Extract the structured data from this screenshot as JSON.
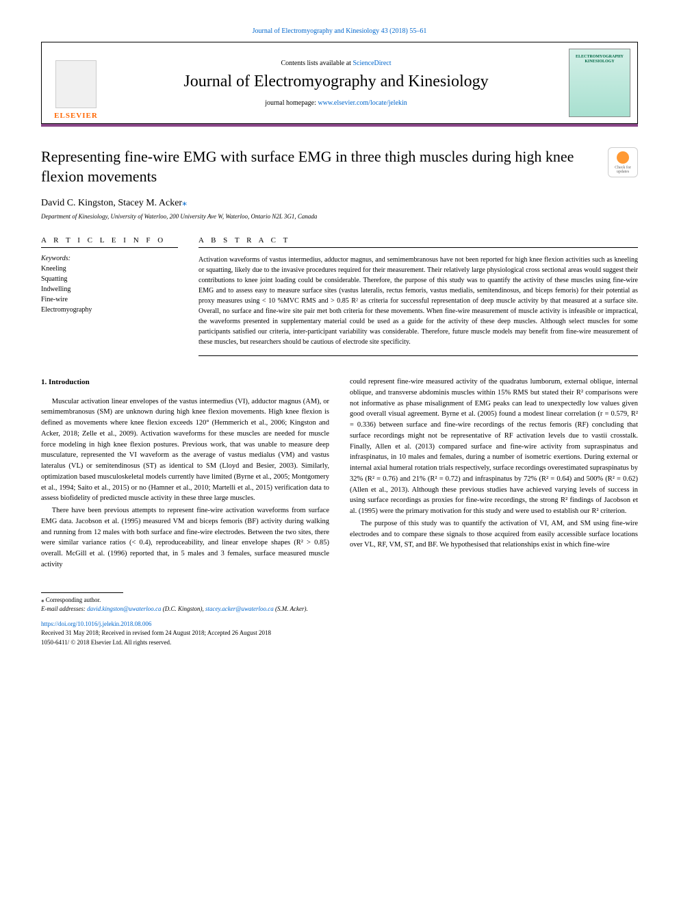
{
  "header": {
    "citation": "Journal of Electromyography and Kinesiology 43 (2018) 55–61",
    "contents_text": "Contents lists available at ",
    "contents_link": "ScienceDirect",
    "journal_name": "Journal of Electromyography and Kinesiology",
    "homepage_text": "journal homepage: ",
    "homepage_link": "www.elsevier.com/locate/jelekin",
    "publisher": "ELSEVIER",
    "cover_line1": "ELECTROMYOGRAPHY",
    "cover_line2": "KINESIOLOGY"
  },
  "article": {
    "title": "Representing fine-wire EMG with surface EMG in three thigh muscles during high knee flexion movements",
    "updates_label": "Check for updates",
    "authors_html": "David C. Kingston, Stacey M. Acker",
    "corr_marker": "⁎",
    "affiliation": "Department of Kinesiology, University of Waterloo, 200 University Ave W, Waterloo, Ontario N2L 3G1, Canada"
  },
  "info": {
    "heading": "A R T I C L E  I N F O",
    "keywords_label": "Keywords:",
    "keywords": [
      "Kneeling",
      "Squatting",
      "Indwelling",
      "Fine-wire",
      "Electromyography"
    ]
  },
  "abstract": {
    "heading": "A B S T R A C T",
    "text": "Activation waveforms of vastus intermedius, adductor magnus, and semimembranosus have not been reported for high knee flexion activities such as kneeling or squatting, likely due to the invasive procedures required for their measurement. Their relatively large physiological cross sectional areas would suggest their contributions to knee joint loading could be considerable. Therefore, the purpose of this study was to quantify the activity of these muscles using fine-wire EMG and to assess easy to measure surface sites (vastus lateralis, rectus femoris, vastus medialis, semitendinosus, and biceps femoris) for their potential as proxy measures using < 10 %MVC RMS and > 0.85 R² as criteria for successful representation of deep muscle activity by that measured at a surface site. Overall, no surface and fine-wire site pair met both criteria for these movements. When fine-wire measurement of muscle activity is infeasible or impractical, the waveforms presented in supplementary material could be used as a guide for the activity of these deep muscles. Although select muscles for some participants satisfied our criteria, inter-participant variability was considerable. Therefore, future muscle models may benefit from fine-wire measurement of these muscles, but researchers should be cautious of electrode site specificity."
  },
  "body": {
    "intro_heading": "1. Introduction",
    "col1_p1": "Muscular activation linear envelopes of the vastus intermedius (VI), adductor magnus (AM), or semimembranosus (SM) are unknown during high knee flexion movements. High knee flexion is defined as movements where knee flexion exceeds 120° (Hemmerich et al., 2006; Kingston and Acker, 2018; Zelle et al., 2009). Activation waveforms for these muscles are needed for muscle force modeling in high knee flexion postures. Previous work, that was unable to measure deep musculature, represented the VI waveform as the average of vastus medialus (VM) and vastus lateralus (VL) or semitendinosus (ST) as identical to SM (Lloyd and Besier, 2003). Similarly, optimization based musculoskeletal models currently have limited (Byrne et al., 2005; Montgomery et al., 1994; Saito et al., 2015) or no (Hamner et al., 2010; Martelli et al., 2015) verification data to assess biofidelity of predicted muscle activity in these three large muscles.",
    "col1_p2": "There have been previous attempts to represent fine-wire activation waveforms from surface EMG data. Jacobson et al. (1995) measured VM and biceps femoris (BF) activity during walking and running from 12 males with both surface and fine-wire electrodes. Between the two sites, there were similar variance ratios (< 0.4), reproduceability, and linear envelope shapes (R² > 0.85) overall. McGill et al. (1996) reported that, in 5 males and 3 females, surface measured muscle activity",
    "col2_p1": "could represent fine-wire measured activity of the quadratus lumborum, external oblique, internal oblique, and transverse abdominis muscles within 15% RMS but stated their R² comparisons were not informative as phase misalignment of EMG peaks can lead to unexpectedly low values given good overall visual agreement. Byrne et al. (2005) found a modest linear correlation (r = 0.579, R² = 0.336) between surface and fine-wire recordings of the rectus femoris (RF) concluding that surface recordings might not be representative of RF activation levels due to vastii crosstalk. Finally, Allen et al. (2013) compared surface and fine-wire activity from supraspinatus and infraspinatus, in 10 males and females, during a number of isometric exertions. During external or internal axial humeral rotation trials respectively, surface recordings overestimated supraspinatus by 32% (R² = 0.76) and 21% (R² = 0.72) and infraspinatus by 72% (R² = 0.64) and 500% (R² = 0.62) (Allen et al., 2013). Although these previous studies have achieved varying levels of success in using surface recordings as proxies for fine-wire recordings, the strong R² findings of Jacobson et al. (1995) were the primary motivation for this study and were used to establish our R² criterion.",
    "col2_p2": "The purpose of this study was to quantify the activation of VI, AM, and SM using fine-wire electrodes and to compare these signals to those acquired from easily accessible surface locations over VL, RF, VM, ST, and BF. We hypothesised that relationships exist in which fine-wire"
  },
  "footer": {
    "corr_label": "⁎ Corresponding author.",
    "email_label": "E-mail addresses: ",
    "email1": "david.kingston@uwaterloo.ca",
    "email1_name": " (D.C. Kingston), ",
    "email2": "stacey.acker@uwaterloo.ca",
    "email2_name": " (S.M. Acker).",
    "doi": "https://doi.org/10.1016/j.jelekin.2018.08.006",
    "received": "Received 31 May 2018; Received in revised form 24 August 2018; Accepted 26 August 2018",
    "copyright": "1050-6411/ © 2018 Elsevier Ltd. All rights reserved."
  },
  "colors": {
    "link": "#0066cc",
    "elsevier_orange": "#ff6600",
    "accent_purple": "#8b4789",
    "cover_teal": "#a8e0d0"
  }
}
